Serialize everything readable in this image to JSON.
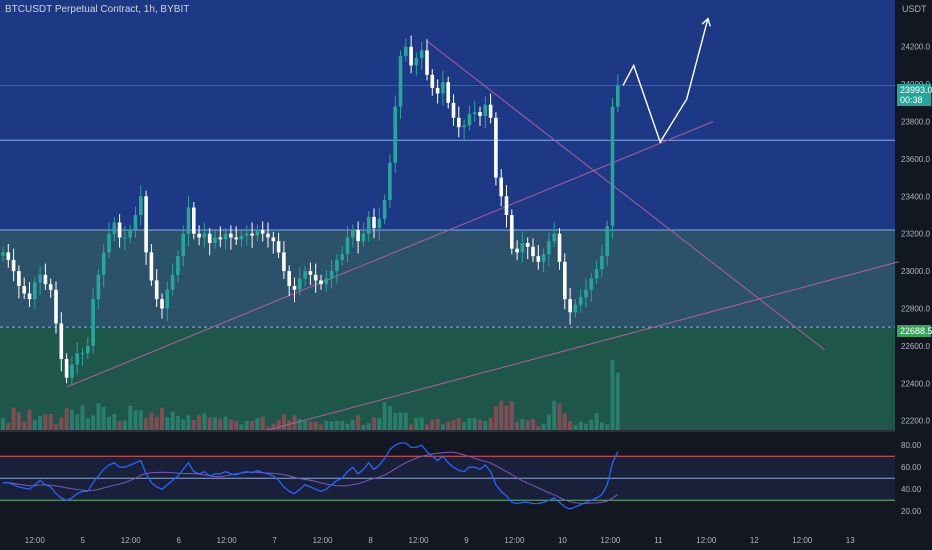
{
  "header": {
    "title": "BTCUSDT Perpetual Contract, 1h, BYBIT"
  },
  "price_tags": {
    "current_price": "23993.0",
    "countdown": "00:38",
    "level_price": "22688.5"
  },
  "colors": {
    "background": "#131722",
    "zone_blue": "#1e3a8a",
    "zone_teal": "#2c5470",
    "zone_green": "#1f5a4c",
    "up": "#26a69a",
    "down": "#ffffff",
    "rsi": "#2962ff",
    "rsi_ma": "#7e57c2",
    "trendline": "#b05f9e",
    "current_tag": "#26a69a",
    "level_tag": "#3aa35a"
  },
  "chart_data": [
    {
      "type": "candlestick",
      "title": "BTCUSDT Perpetual Contract, 1h, BYBIT",
      "y_axis_unit": "USDT",
      "ylim": [
        22150,
        24450
      ],
      "y_ticks": [
        24200,
        24000,
        23800,
        23600,
        23400,
        23200,
        23000,
        22800,
        22600,
        22400,
        22200
      ],
      "y_tick_labels": [
        "24200.0",
        "24000.0",
        "23800.0",
        "23600.0",
        "23400.0",
        "23200.0",
        "23000.0",
        "22800.0",
        "22600.0",
        "22400.0",
        "22200.0"
      ],
      "x_tick_labels": [
        "12:00",
        "5",
        "12:00",
        "6",
        "12:00",
        "7",
        "12:00",
        "8",
        "12:00",
        "9",
        "12:00",
        "10",
        "12:00",
        "11",
        "12:00",
        "12",
        "12:00",
        "13"
      ],
      "horizontal_levels": [
        23993,
        23700,
        23220,
        22700
      ],
      "current_price": 23993.0,
      "marked_level": 22688.5,
      "zones": [
        {
          "from": 23220,
          "to": 24450,
          "color": "blue"
        },
        {
          "from": 22700,
          "to": 23220,
          "color": "teal"
        },
        {
          "from": 22150,
          "to": 22700,
          "color": "green"
        }
      ],
      "closes": [
        23100,
        23060,
        23000,
        22920,
        22880,
        22850,
        22940,
        22980,
        22930,
        22900,
        22720,
        22530,
        22430,
        22500,
        22560,
        22560,
        22600,
        22850,
        22980,
        23100,
        23200,
        23260,
        23180,
        23180,
        23220,
        23300,
        23400,
        23100,
        22950,
        22850,
        22800,
        22900,
        22980,
        23080,
        23200,
        23340,
        23200,
        23180,
        23200,
        23150,
        23180,
        23170,
        23200,
        23180,
        23170,
        23190,
        23200,
        23190,
        23220,
        23200,
        23180,
        23160,
        23100,
        23000,
        22920,
        22900,
        22960,
        23000,
        22980,
        22950,
        22930,
        22960,
        23000,
        23060,
        23090,
        23180,
        23220,
        23160,
        23200,
        23290,
        23230,
        23280,
        23380,
        23580,
        23880,
        24150,
        24200,
        24100,
        24140,
        24180,
        24050,
        23980,
        23950,
        24010,
        23900,
        23820,
        23770,
        23780,
        23840,
        23850,
        23830,
        23890,
        23820,
        23500,
        23400,
        23300,
        23120,
        23100,
        23150,
        23130,
        23080,
        23050,
        23090,
        23160,
        23200,
        23050,
        22850,
        22780,
        22820,
        22860,
        22900,
        22960,
        23010,
        23080,
        23240,
        23880,
        23993
      ],
      "indicators": [
        {
          "name": "Volume",
          "type": "bar",
          "ylim": [
            0,
            100
          ],
          "values": [
            17,
            10,
            32,
            25,
            12,
            29,
            14,
            20,
            22,
            23,
            8,
            18,
            31,
            29,
            22,
            35,
            17,
            21,
            38,
            33,
            19,
            23,
            13,
            14,
            35,
            28,
            28,
            17,
            25,
            19,
            32,
            18,
            26,
            20,
            15,
            21,
            14,
            21,
            24,
            18,
            18,
            16,
            19,
            15,
            13,
            8,
            13,
            13,
            17,
            19,
            5,
            9,
            14,
            22,
            14,
            21,
            16,
            13,
            12,
            12,
            8,
            13,
            12,
            13,
            13,
            9,
            14,
            21,
            7,
            10,
            18,
            17,
            40,
            34,
            24,
            25,
            25,
            8,
            17,
            18,
            8,
            15,
            16,
            8,
            12,
            14,
            17,
            11,
            17,
            17,
            15,
            13,
            17,
            34,
            42,
            35,
            41,
            12,
            16,
            14,
            16,
            6,
            9,
            22,
            42,
            38,
            24,
            13,
            7,
            12,
            9,
            15,
            24,
            11,
            8,
            100,
            82
          ]
        },
        {
          "name": "RSI",
          "type": "line",
          "ylim": [
            12,
            92
          ],
          "y_ticks": [
            80,
            60,
            40,
            20
          ],
          "y_tick_labels": [
            "80.00",
            "60.00",
            "40.00",
            "20.00"
          ],
          "levels": [
            70,
            50,
            30
          ],
          "values": [
            46,
            46,
            44,
            42,
            41,
            40,
            44,
            48,
            44,
            42,
            36,
            32,
            30,
            32,
            36,
            38,
            38,
            46,
            52,
            58,
            62,
            64,
            60,
            60,
            62,
            64,
            66,
            54,
            46,
            42,
            40,
            44,
            48,
            52,
            58,
            64,
            56,
            54,
            56,
            52,
            54,
            54,
            56,
            54,
            53,
            55,
            56,
            55,
            57,
            55,
            54,
            52,
            48,
            42,
            38,
            36,
            40,
            44,
            42,
            40,
            38,
            40,
            44,
            48,
            50,
            56,
            60,
            54,
            58,
            64,
            58,
            62,
            68,
            76,
            80,
            82,
            82,
            78,
            78,
            80,
            74,
            70,
            66,
            70,
            64,
            60,
            57,
            56,
            60,
            60,
            58,
            62,
            56,
            44,
            38,
            34,
            28,
            27,
            28,
            28,
            27,
            27,
            28,
            30,
            32,
            28,
            24,
            22,
            24,
            26,
            28,
            30,
            32,
            35,
            44,
            64,
            74
          ]
        }
      ]
    }
  ]
}
